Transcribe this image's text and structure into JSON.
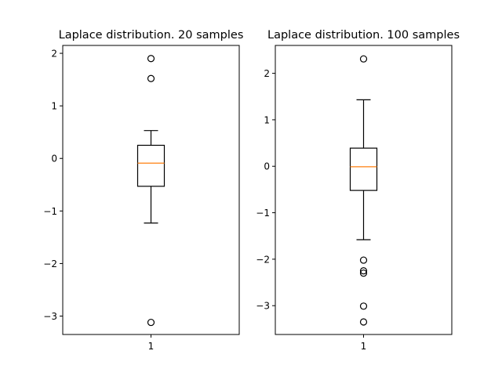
{
  "colors": {
    "box": "#000000",
    "median": "#ff7f0e",
    "axes": "#000000",
    "background": "#ffffff"
  },
  "chart_data": [
    {
      "type": "boxplot",
      "title": "Laplace distribution. 20 samples",
      "categories": [
        "1"
      ],
      "ylim": [
        -3.35,
        2.15
      ],
      "yticks": [
        2,
        1,
        0,
        -1,
        -2,
        -3
      ],
      "ytick_labels": [
        "2",
        "1",
        "0",
        "−1",
        "−2",
        "−3"
      ],
      "box": {
        "whisker_low": -1.23,
        "q1": -0.53,
        "median": -0.09,
        "q3": 0.25,
        "whisker_high": 0.53
      },
      "outliers": [
        1.9,
        1.52,
        -3.12
      ],
      "grid": false
    },
    {
      "type": "boxplot",
      "title": "Laplace distribution. 100 samples",
      "categories": [
        "1"
      ],
      "ylim": [
        -3.62,
        2.6
      ],
      "yticks": [
        2,
        1,
        0,
        -1,
        -2,
        -3
      ],
      "ytick_labels": [
        "2",
        "1",
        "0",
        "−1",
        "−2",
        "−3"
      ],
      "box": {
        "whisker_low": -1.58,
        "q1": -0.52,
        "median": -0.01,
        "q3": 0.39,
        "whisker_high": 1.43
      },
      "outliers": [
        2.31,
        -2.02,
        -2.25,
        -2.3,
        -3.01,
        -3.35
      ],
      "grid": false
    }
  ]
}
